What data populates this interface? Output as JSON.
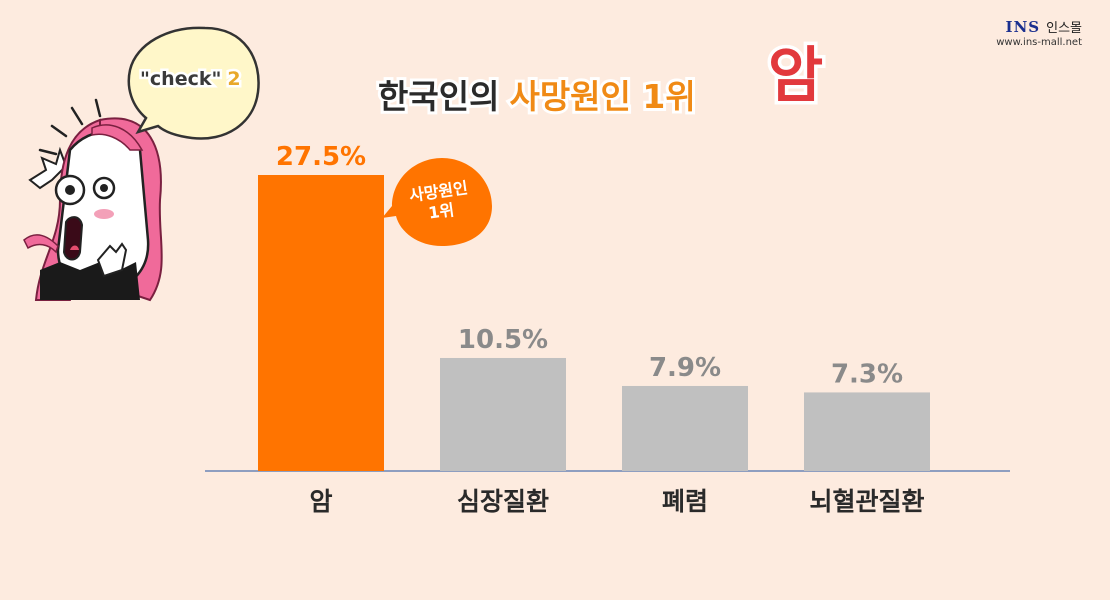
{
  "logo": {
    "brand": "INS",
    "name": "인스몰",
    "url": "www.ins-mall.net"
  },
  "headline": {
    "part1": "한국인의",
    "part2": "사망원인 1위",
    "part3": "암"
  },
  "bubble": {
    "label": "\"check\"",
    "number": "2"
  },
  "callout": {
    "line1": "사망원인",
    "line2": "1위"
  },
  "colors": {
    "highlight": "#ff7400",
    "other": "#c0c0c0",
    "axis": "#6a85b6",
    "background": "#fdebdf",
    "title_accent": "#f08a15",
    "title_big": "#e2393d"
  },
  "chart_data": {
    "type": "bar",
    "categories": [
      "암",
      "심장질환",
      "폐렴",
      "뇌혈관질환"
    ],
    "values": [
      27.5,
      10.5,
      7.9,
      7.3
    ],
    "value_labels": [
      "27.5%",
      "10.5%",
      "7.9%",
      "7.3%"
    ],
    "highlight_index": 0,
    "title": "한국인의 사망원인 1위 암",
    "xlabel": "",
    "ylabel": "",
    "ylim": [
      0,
      27.5
    ],
    "grid": false
  }
}
